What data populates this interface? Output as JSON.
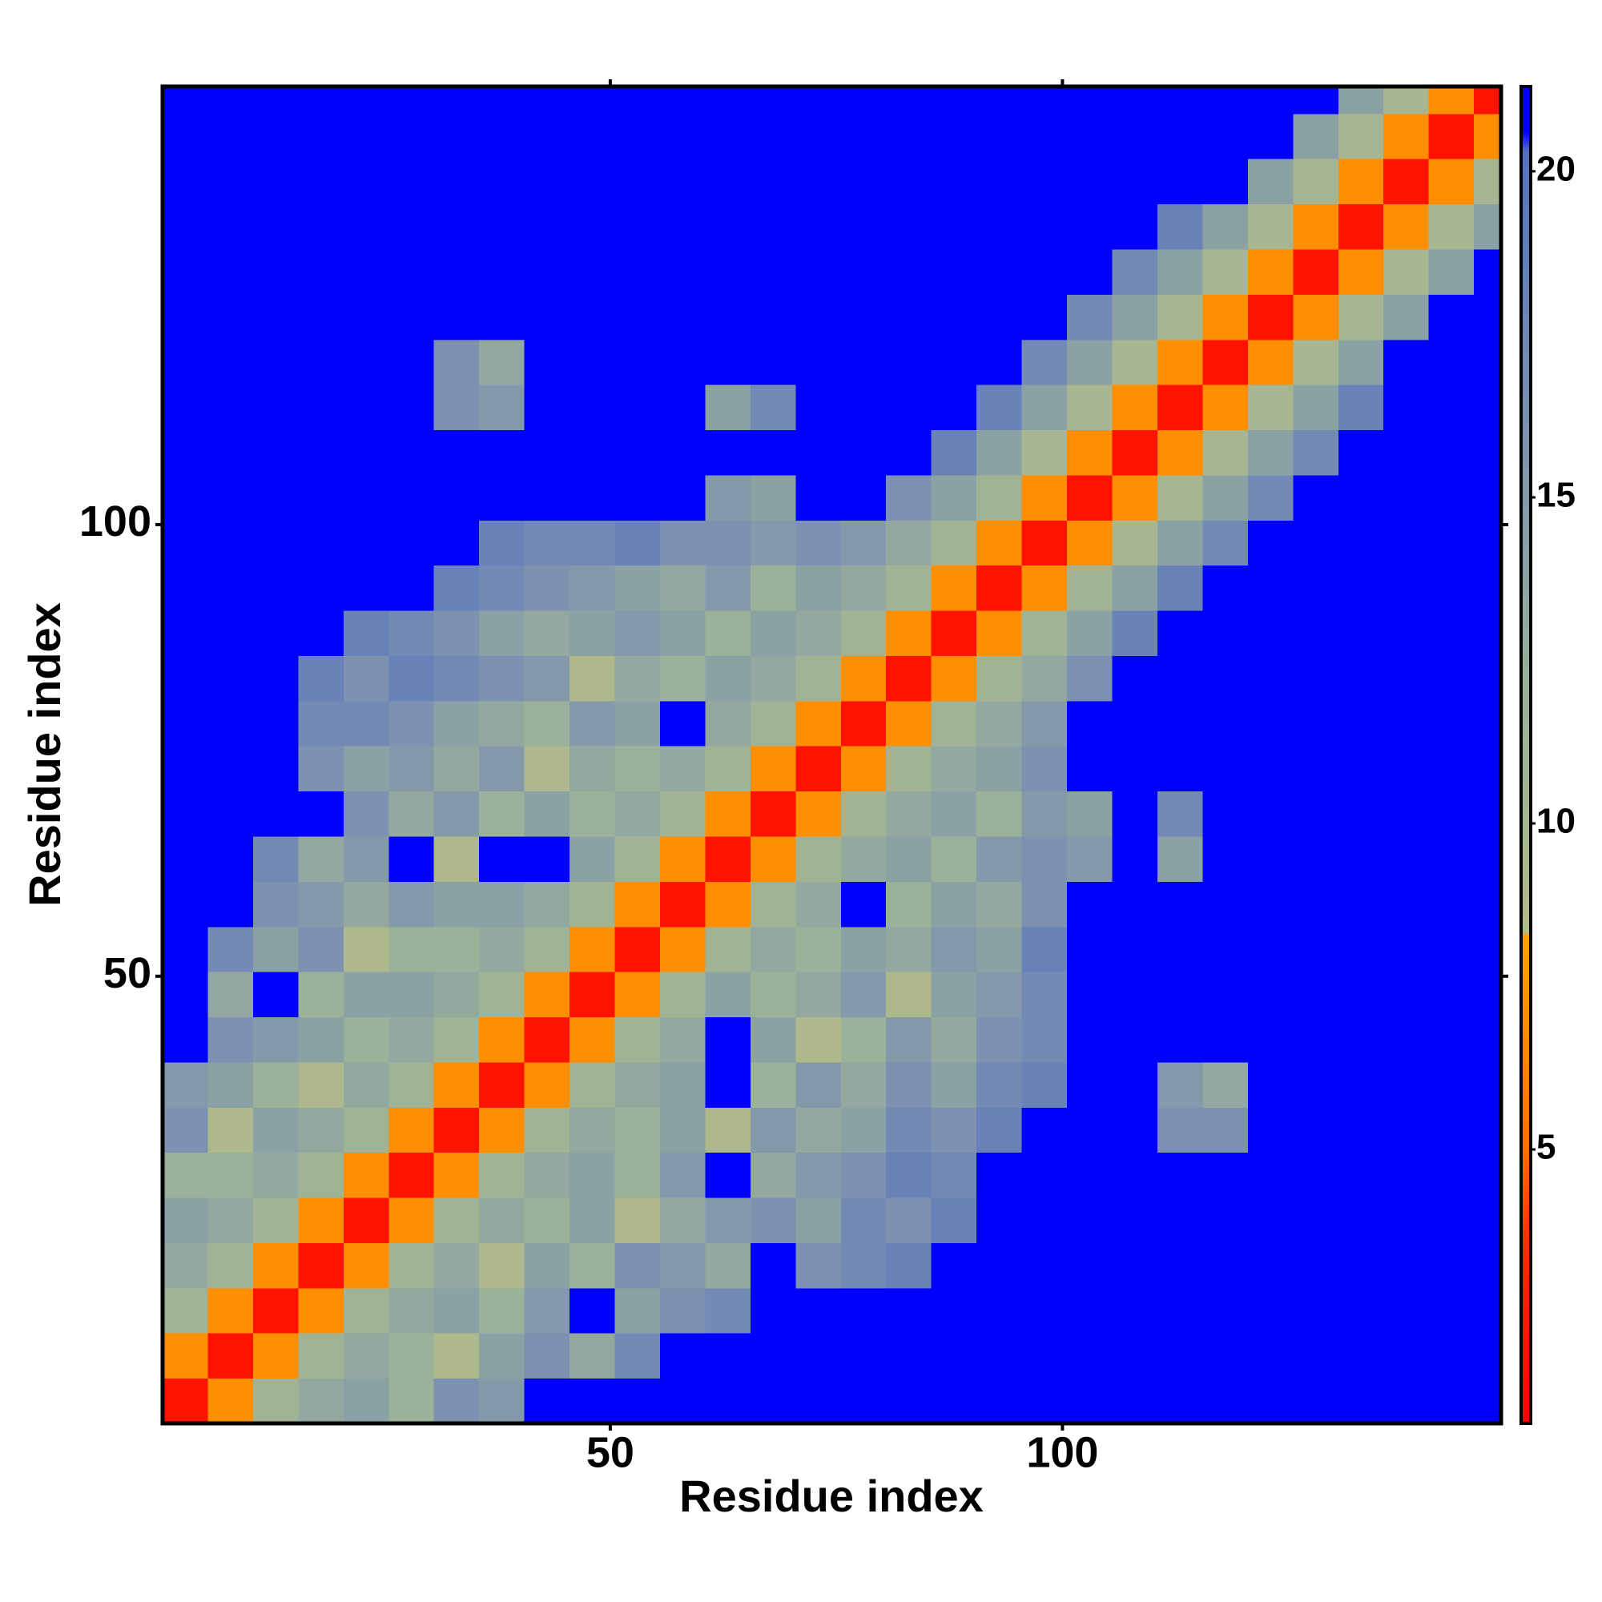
{
  "chart_data": {
    "type": "heatmap",
    "x_label": "Residue index",
    "y_label": "Residue index",
    "x_bins": [
      0.5,
      5.5,
      10.5,
      15.5,
      20.5,
      25.5,
      30.5,
      35.5,
      40.5,
      45.5,
      50.5,
      55.5,
      60.5,
      65.5,
      70.5,
      75.5,
      80.5,
      85.5,
      90.5,
      95.5,
      100.5,
      105.5,
      110.5,
      115.5,
      120.5,
      125.5,
      130.5,
      135.5,
      140.5,
      145.5,
      148.5
    ],
    "y_bins": [
      0.5,
      5.5,
      10.5,
      15.5,
      20.5,
      25.5,
      30.5,
      35.5,
      40.5,
      45.5,
      50.5,
      55.5,
      60.5,
      65.5,
      70.5,
      75.5,
      80.5,
      85.5,
      90.5,
      95.5,
      100.5,
      105.5,
      110.5,
      115.5,
      120.5,
      125.5,
      130.5,
      135.5,
      140.5,
      145.5,
      148.5
    ],
    "xlim": [
      0.5,
      148.5
    ],
    "ylim": [
      0.5,
      148.5
    ],
    "xticks": [
      50,
      100
    ],
    "yticks": [
      50,
      100
    ],
    "zlim": [
      0.8,
      21.3
    ],
    "zticks": [
      5,
      10,
      15,
      20
    ],
    "colorscale": [
      [
        0.8,
        "#ff0000"
      ],
      [
        3.5,
        "#ff2a00"
      ],
      [
        5,
        "#ff7000"
      ],
      [
        8.3,
        "#ffa200"
      ],
      [
        8.31,
        "#b2ba88"
      ],
      [
        12,
        "#9ab19a"
      ],
      [
        16,
        "#7c92b0"
      ],
      [
        20.3,
        "#5472c2"
      ],
      [
        20.6,
        "#0000ff"
      ],
      [
        21.3,
        "#0000ff"
      ]
    ],
    "values": [
      [
        2,
        7,
        11,
        13,
        14,
        12,
        16,
        15,
        21,
        21,
        21,
        21,
        21,
        21,
        21,
        21,
        21,
        21,
        21,
        21,
        21,
        21,
        21,
        21,
        21,
        21,
        21,
        21,
        21,
        21
      ],
      [
        7,
        2,
        7,
        11,
        13,
        12,
        9,
        14,
        16,
        13,
        17,
        21,
        21,
        21,
        21,
        21,
        21,
        21,
        21,
        21,
        21,
        21,
        21,
        21,
        21,
        21,
        21,
        21,
        21,
        21
      ],
      [
        11,
        7,
        2,
        7,
        11,
        13,
        14,
        12,
        15,
        21,
        14,
        16,
        17,
        21,
        21,
        21,
        21,
        21,
        21,
        21,
        21,
        21,
        21,
        21,
        21,
        21,
        21,
        21,
        21,
        21
      ],
      [
        13,
        11,
        7,
        2,
        7,
        11,
        13,
        9,
        14,
        12,
        16,
        15,
        13,
        21,
        16,
        17,
        18,
        21,
        21,
        21,
        21,
        21,
        21,
        21,
        21,
        21,
        21,
        21,
        21,
        21
      ],
      [
        14,
        13,
        11,
        7,
        2,
        7,
        11,
        13,
        12,
        14,
        9,
        13,
        15,
        16,
        14,
        17,
        16,
        18,
        21,
        21,
        21,
        21,
        21,
        21,
        21,
        21,
        21,
        21,
        21,
        21
      ],
      [
        12,
        12,
        13,
        11,
        7,
        2,
        7,
        11,
        13,
        14,
        12,
        15,
        21,
        13,
        15,
        16,
        18,
        17,
        21,
        21,
        21,
        21,
        21,
        21,
        21,
        21,
        21,
        21,
        21,
        21
      ],
      [
        16,
        9,
        14,
        13,
        11,
        7,
        2,
        7,
        11,
        13,
        12,
        14,
        9,
        15,
        13,
        14,
        17,
        16,
        18,
        21,
        21,
        21,
        16,
        16,
        21,
        21,
        21,
        21,
        21,
        21
      ],
      [
        15,
        14,
        12,
        9,
        13,
        11,
        7,
        2,
        7,
        11,
        13,
        14,
        21,
        12,
        15,
        13,
        16,
        14,
        17,
        18,
        21,
        21,
        15,
        13,
        21,
        21,
        21,
        21,
        21,
        21
      ],
      [
        21,
        16,
        15,
        14,
        12,
        13,
        11,
        7,
        2,
        7,
        11,
        13,
        21,
        14,
        9,
        12,
        15,
        13,
        16,
        17,
        21,
        21,
        21,
        21,
        21,
        21,
        21,
        21,
        21,
        21
      ],
      [
        21,
        13,
        21,
        12,
        14,
        14,
        13,
        11,
        7,
        2,
        7,
        11,
        14,
        12,
        13,
        15,
        9,
        14,
        15,
        17,
        21,
        21,
        21,
        21,
        21,
        21,
        21,
        21,
        21,
        21
      ],
      [
        21,
        17,
        14,
        16,
        9,
        12,
        12,
        13,
        11,
        7,
        2,
        7,
        11,
        13,
        12,
        14,
        13,
        15,
        14,
        18,
        21,
        21,
        21,
        21,
        21,
        21,
        21,
        21,
        21,
        21
      ],
      [
        21,
        21,
        16,
        15,
        13,
        15,
        14,
        14,
        13,
        11,
        7,
        2,
        7,
        11,
        13,
        21,
        12,
        14,
        13,
        16,
        21,
        21,
        21,
        21,
        21,
        21,
        21,
        21,
        21,
        21
      ],
      [
        21,
        21,
        17,
        13,
        15,
        21,
        9,
        21,
        21,
        14,
        11,
        7,
        2,
        7,
        11,
        13,
        14,
        12,
        15,
        16,
        15,
        21,
        14,
        21,
        21,
        21,
        21,
        21,
        21,
        21
      ],
      [
        21,
        21,
        21,
        21,
        16,
        13,
        15,
        12,
        14,
        12,
        13,
        11,
        7,
        2,
        7,
        11,
        13,
        14,
        12,
        15,
        14,
        21,
        17,
        21,
        21,
        21,
        21,
        21,
        21,
        21
      ],
      [
        21,
        21,
        21,
        16,
        14,
        15,
        13,
        15,
        9,
        13,
        12,
        13,
        11,
        7,
        2,
        7,
        11,
        13,
        14,
        16,
        21,
        21,
        21,
        21,
        21,
        21,
        21,
        21,
        21,
        21
      ],
      [
        21,
        21,
        21,
        17,
        17,
        16,
        14,
        13,
        12,
        15,
        14,
        21,
        13,
        11,
        7,
        2,
        7,
        11,
        13,
        15,
        21,
        21,
        21,
        21,
        21,
        21,
        21,
        21,
        21,
        21
      ],
      [
        21,
        21,
        21,
        18,
        16,
        18,
        17,
        16,
        15,
        9,
        13,
        12,
        14,
        13,
        11,
        7,
        2,
        7,
        11,
        13,
        16,
        21,
        21,
        21,
        21,
        21,
        21,
        21,
        21,
        21
      ],
      [
        21,
        21,
        21,
        21,
        18,
        17,
        16,
        14,
        13,
        14,
        15,
        14,
        12,
        14,
        13,
        11,
        7,
        2,
        7,
        11,
        14,
        18,
        21,
        21,
        21,
        21,
        21,
        21,
        21,
        21
      ],
      [
        21,
        21,
        21,
        21,
        21,
        21,
        18,
        17,
        16,
        15,
        14,
        13,
        15,
        12,
        14,
        13,
        11,
        7,
        2,
        7,
        11,
        14,
        18,
        21,
        21,
        21,
        21,
        21,
        21,
        21
      ],
      [
        21,
        21,
        21,
        21,
        21,
        21,
        21,
        18,
        17,
        17,
        18,
        16,
        16,
        15,
        16,
        15,
        13,
        11,
        7,
        2,
        7,
        10,
        14,
        17,
        21,
        21,
        21,
        21,
        21,
        21
      ],
      [
        21,
        21,
        21,
        21,
        21,
        21,
        21,
        21,
        21,
        21,
        21,
        21,
        15,
        14,
        21,
        21,
        16,
        14,
        11,
        7,
        2,
        7,
        10,
        14,
        17,
        21,
        21,
        21,
        21,
        21
      ],
      [
        21,
        21,
        21,
        21,
        21,
        21,
        21,
        21,
        21,
        21,
        21,
        21,
        21,
        21,
        21,
        21,
        21,
        18,
        14,
        10,
        7,
        2,
        7,
        10,
        14,
        17,
        21,
        21,
        21,
        21
      ],
      [
        21,
        21,
        21,
        21,
        21,
        21,
        16,
        15,
        21,
        21,
        21,
        21,
        14,
        17,
        21,
        21,
        21,
        21,
        18,
        14,
        10,
        7,
        2,
        7,
        10,
        14,
        18,
        21,
        21,
        21
      ],
      [
        21,
        21,
        21,
        21,
        21,
        21,
        16,
        13,
        21,
        21,
        21,
        21,
        21,
        21,
        21,
        21,
        21,
        21,
        21,
        17,
        14,
        10,
        7,
        2,
        7,
        10,
        14,
        21,
        21,
        21
      ],
      [
        21,
        21,
        21,
        21,
        21,
        21,
        21,
        21,
        21,
        21,
        21,
        21,
        21,
        21,
        21,
        21,
        21,
        21,
        21,
        21,
        17,
        14,
        10,
        7,
        2,
        7,
        10,
        14,
        21,
        21
      ],
      [
        21,
        21,
        21,
        21,
        21,
        21,
        21,
        21,
        21,
        21,
        21,
        21,
        21,
        21,
        21,
        21,
        21,
        21,
        21,
        21,
        21,
        17,
        14,
        10,
        7,
        2,
        7,
        10,
        14,
        21
      ],
      [
        21,
        21,
        21,
        21,
        21,
        21,
        21,
        21,
        21,
        21,
        21,
        21,
        21,
        21,
        21,
        21,
        21,
        21,
        21,
        21,
        21,
        21,
        18,
        14,
        10,
        7,
        2,
        7,
        10,
        14
      ],
      [
        21,
        21,
        21,
        21,
        21,
        21,
        21,
        21,
        21,
        21,
        21,
        21,
        21,
        21,
        21,
        21,
        21,
        21,
        21,
        21,
        21,
        21,
        21,
        21,
        14,
        10,
        7,
        2,
        7,
        10
      ],
      [
        21,
        21,
        21,
        21,
        21,
        21,
        21,
        21,
        21,
        21,
        21,
        21,
        21,
        21,
        21,
        21,
        21,
        21,
        21,
        21,
        21,
        21,
        21,
        21,
        21,
        14,
        10,
        7,
        2,
        7
      ],
      [
        21,
        21,
        21,
        21,
        21,
        21,
        21,
        21,
        21,
        21,
        21,
        21,
        21,
        21,
        21,
        21,
        21,
        21,
        21,
        21,
        21,
        21,
        21,
        21,
        21,
        21,
        14,
        10,
        7,
        2
      ]
    ]
  }
}
